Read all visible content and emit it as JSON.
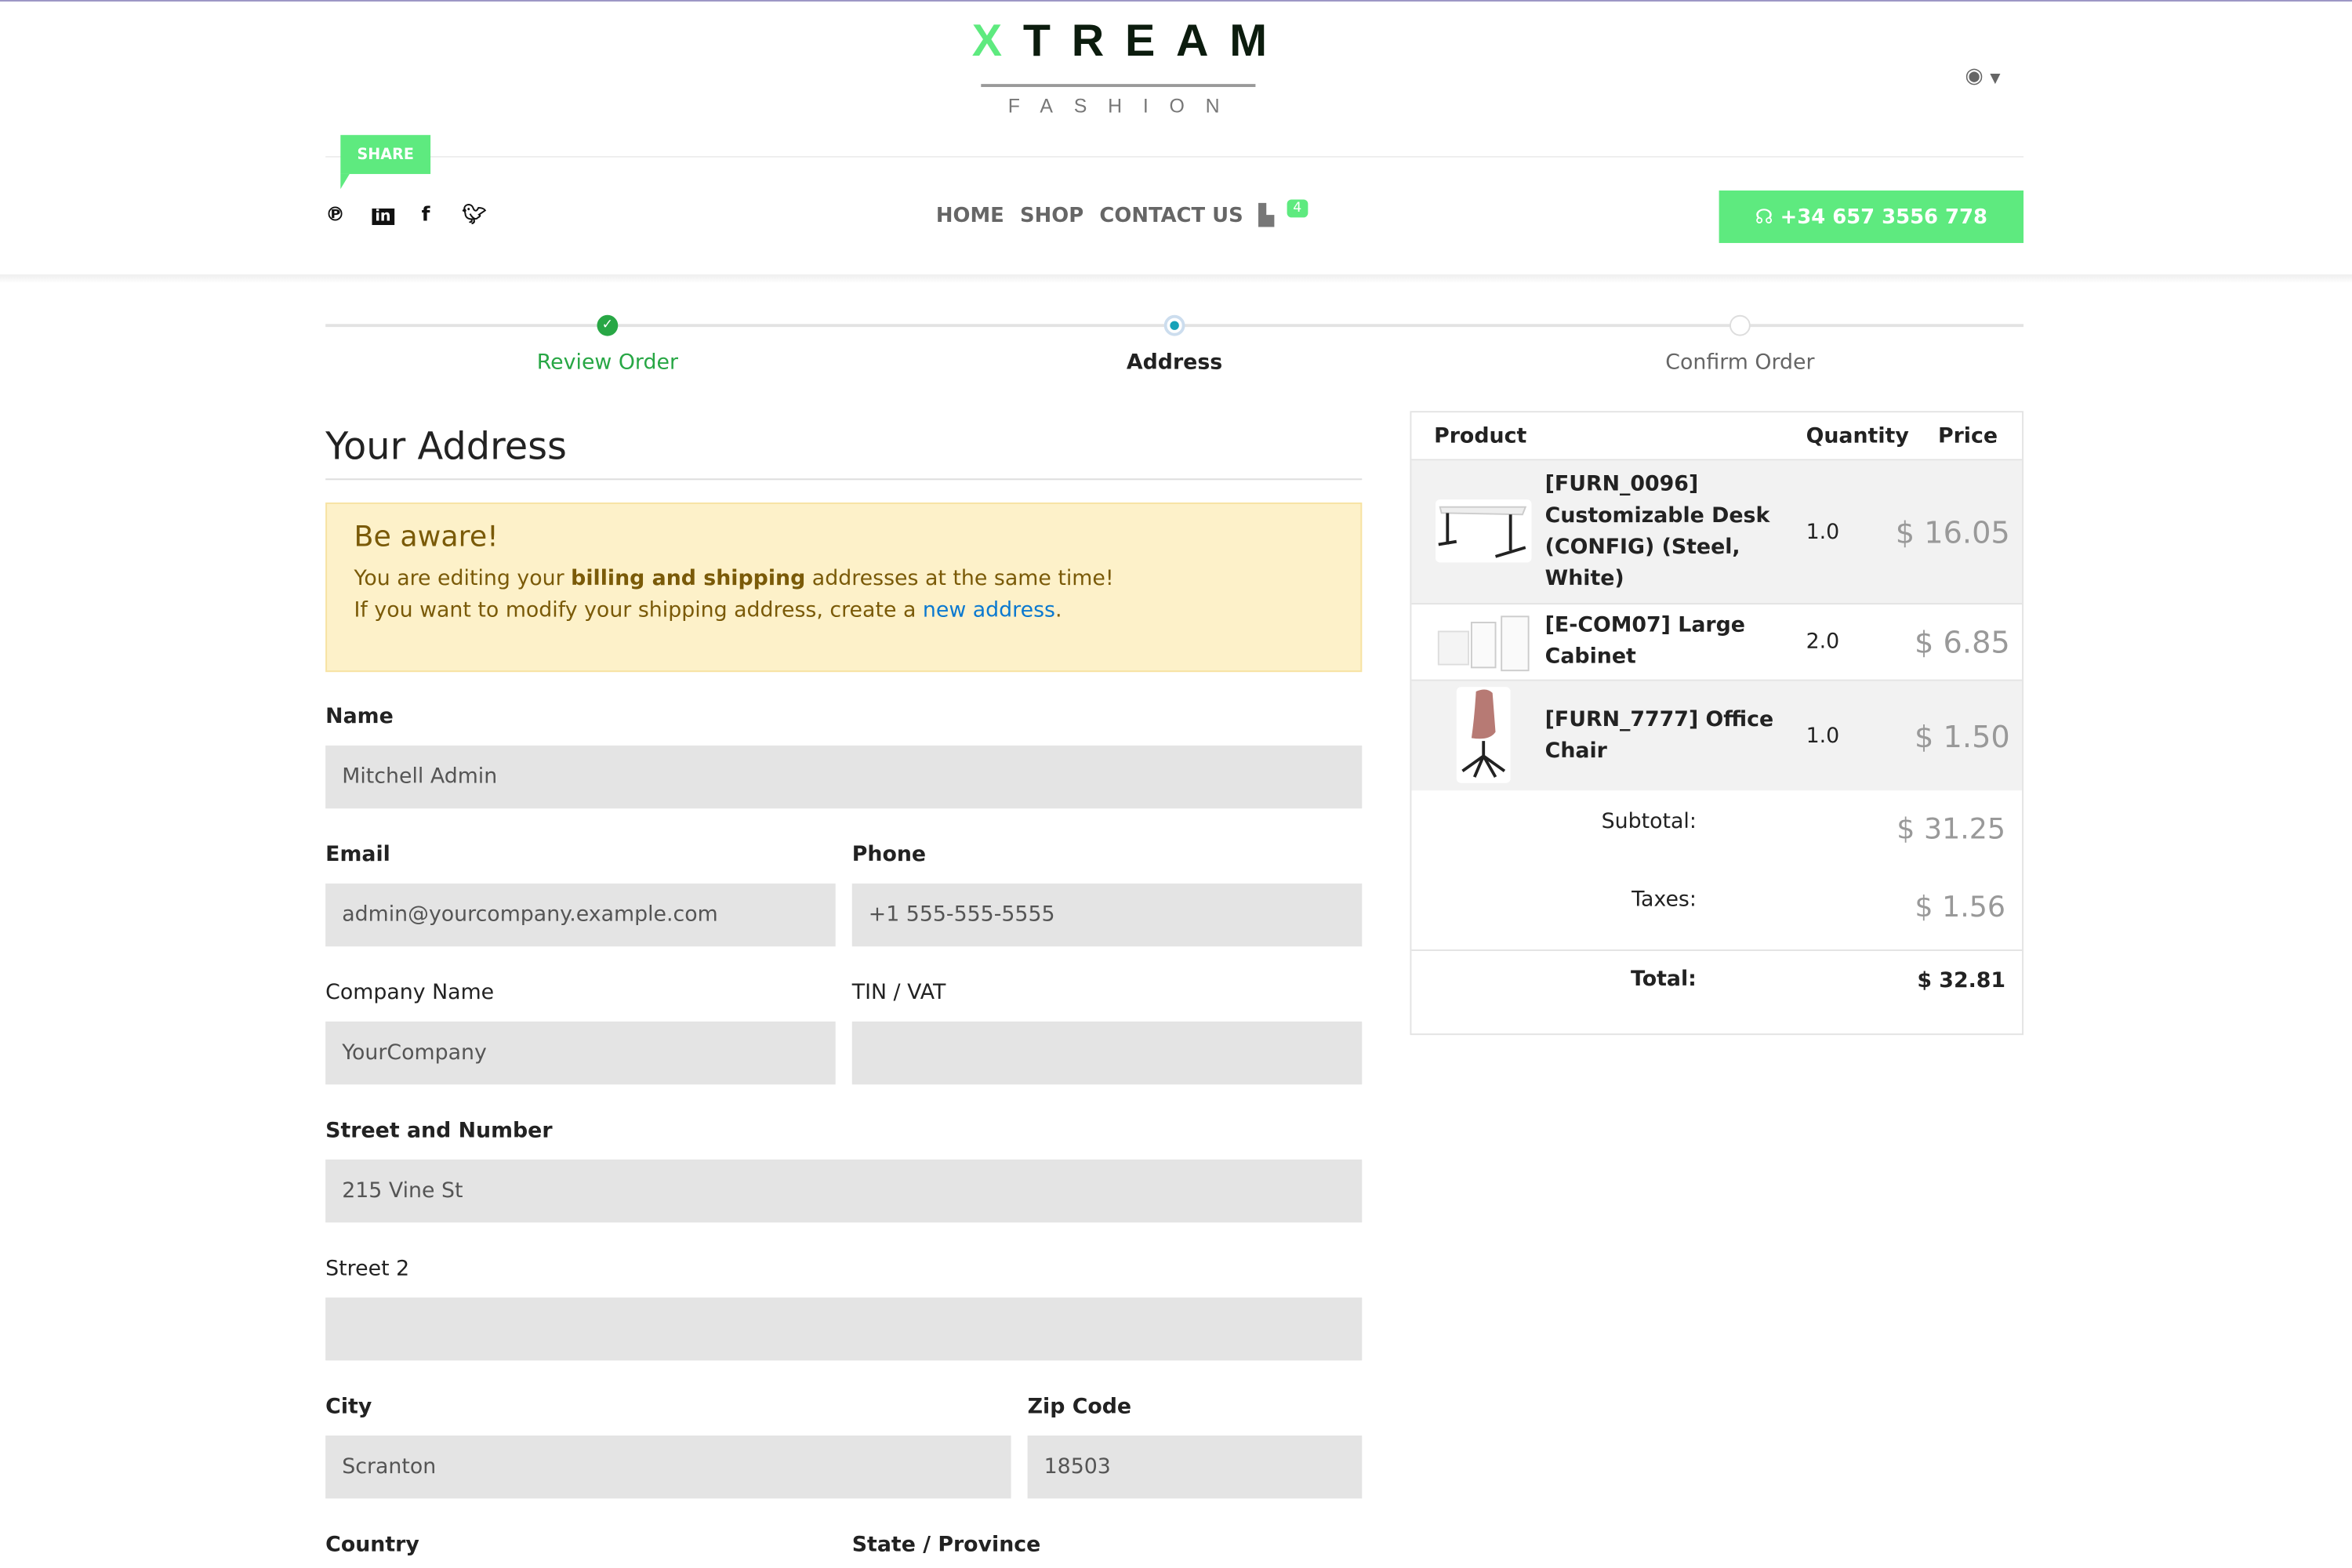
{
  "header": {
    "logo_main": "TREAM",
    "logo_initial": "X",
    "logo_sub": "FASHION",
    "share_label": "SHARE",
    "social": [
      "pinterest-icon",
      "linkedin-icon",
      "facebook-icon",
      "twitter-icon"
    ],
    "nav": [
      "HOME",
      "SHOP",
      "CONTACT US"
    ],
    "cart_count": "4",
    "phone": "+34 657 3556 778",
    "brand_color": "#5eea7f"
  },
  "steps": [
    {
      "label": "Review Order",
      "state": "done"
    },
    {
      "label": "Address",
      "state": "current"
    },
    {
      "label": "Confirm Order",
      "state": "todo"
    }
  ],
  "form": {
    "title": "Your Address",
    "alert": {
      "title": "Be aware!",
      "line1_pre": "You are editing your ",
      "line1_bold": "billing and shipping",
      "line1_post": " addresses at the same time!",
      "line2_pre": "If you want to modify your shipping address, create a ",
      "line2_link": "new address",
      "line2_post": "."
    },
    "name_label": "Name",
    "name": "Mitchell Admin",
    "email_label": "Email",
    "email": "admin@yourcompany.example.com",
    "phone_label": "Phone",
    "phone": "+1 555-555-5555",
    "company_label": "Company Name",
    "company": "YourCompany",
    "vat_label": "TIN / VAT",
    "vat": "",
    "street_label": "Street and Number",
    "street": "215 Vine St",
    "street2_label": "Street 2",
    "street2": "",
    "city_label": "City",
    "city": "Scranton",
    "zip_label": "Zip Code",
    "zip": "18503",
    "country_label": "Country",
    "state_label": "State / Province"
  },
  "cart": {
    "headers": [
      "Product",
      "Quantity",
      "Price"
    ],
    "items": [
      {
        "name": "[FURN_0096] Customizable Desk (CONFIG) (Steel, White)",
        "qty": "1.0",
        "price": "$ 16.05"
      },
      {
        "name": "[E-COM07] Large Cabinet",
        "qty": "2.0",
        "price": "$ 6.85"
      },
      {
        "name": "[FURN_7777] Office Chair",
        "qty": "1.0",
        "price": "$ 1.50"
      }
    ],
    "subtotal_label": "Subtotal:",
    "subtotal": "$ 31.25",
    "taxes_label": "Taxes:",
    "taxes": "$ 1.56",
    "total_label": "Total:",
    "total": "$ 32.81"
  }
}
